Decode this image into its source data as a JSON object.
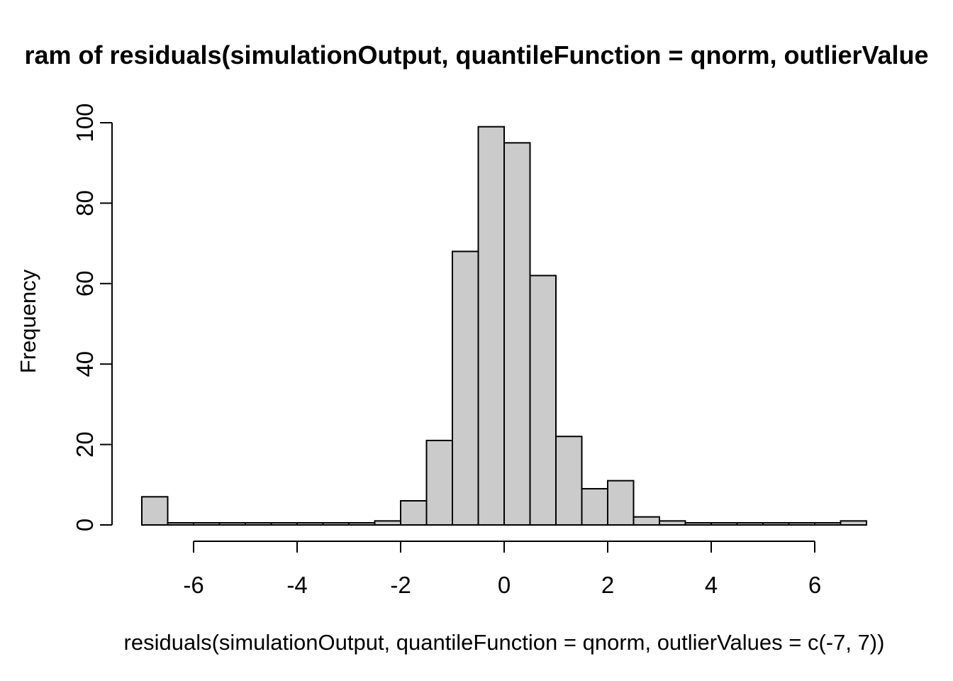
{
  "title": {
    "visible_text": "ram of residuals(simulationOutput, quantileFunction = qnorm, outlierValue",
    "clipped": true
  },
  "chart_data": {
    "type": "bar",
    "subtype": "histogram",
    "title": "ram of residuals(simulationOutput, quantileFunction = qnorm, outlierValue",
    "xlabel": "residuals(simulationOutput, quantileFunction = qnorm, outlierValues = c(-7, 7))",
    "ylabel": "Frequency",
    "xticks": [
      -6,
      -4,
      -2,
      0,
      2,
      4,
      6
    ],
    "yticks": [
      0,
      20,
      40,
      60,
      80,
      100
    ],
    "xlim": [
      -7,
      7
    ],
    "ylim": [
      0,
      100
    ],
    "grid": false,
    "legend": null,
    "bins": {
      "start": -7,
      "bin_width": 0.5,
      "counts": [
        7,
        0,
        0,
        0,
        0,
        0,
        0,
        0,
        0,
        1,
        6,
        21,
        68,
        99,
        95,
        62,
        22,
        9,
        11,
        2,
        1,
        0,
        0,
        0,
        0,
        0,
        0,
        1
      ]
    },
    "colors": {
      "bar_fill": "#cbcbcb",
      "bar_stroke": "#000000",
      "axis": "#000000",
      "text": "#000000",
      "background": "#ffffff"
    }
  }
}
